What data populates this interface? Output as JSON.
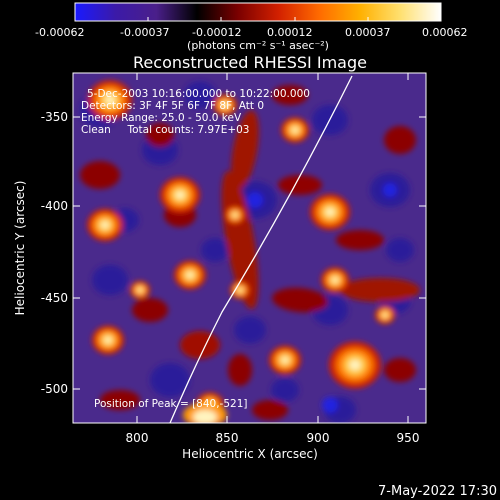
{
  "colorbar": {
    "tick_labels": [
      "-0.00062",
      "-0.00037",
      "-0.00012",
      "0.00012",
      "0.00037",
      "0.00062"
    ],
    "units_label": "(photons cm⁻² s⁻¹ asec⁻²)",
    "colors": [
      "#1a1aff",
      "#3b1aa8",
      "#4a1f8a",
      "#000000",
      "#7a0000",
      "#d22000",
      "#ff6a00",
      "#ffb000",
      "#ffe070",
      "#ffffff"
    ]
  },
  "image": {
    "title": "Reconstructed RHESSI Image",
    "info_lines": [
      "5-Dec-2003 10:16:00.000 to 10:22:00.000",
      "Detectors: 3F 4F 5F 6F 7F 8F, Att 0",
      "Energy Range: 25.0 - 50.0 keV",
      "Clean     Total counts: 7.97E+03"
    ],
    "peak_label": "Position of Peak = [840,-521]",
    "x_axis_label": "Heliocentric X (arcsec)",
    "y_axis_label": "Heliocentric Y (arcsec)",
    "x_ticks": [
      "800",
      "850",
      "900",
      "950"
    ],
    "y_ticks": [
      "-350",
      "-400",
      "-450",
      "-500"
    ],
    "x_range": [
      766,
      956
    ],
    "y_range": [
      -521,
      -331
    ],
    "colors": {
      "background": "#4a2a8c",
      "limb": "#ffffff"
    }
  },
  "footer": {
    "timestamp": "7-May-2022 17:30"
  }
}
